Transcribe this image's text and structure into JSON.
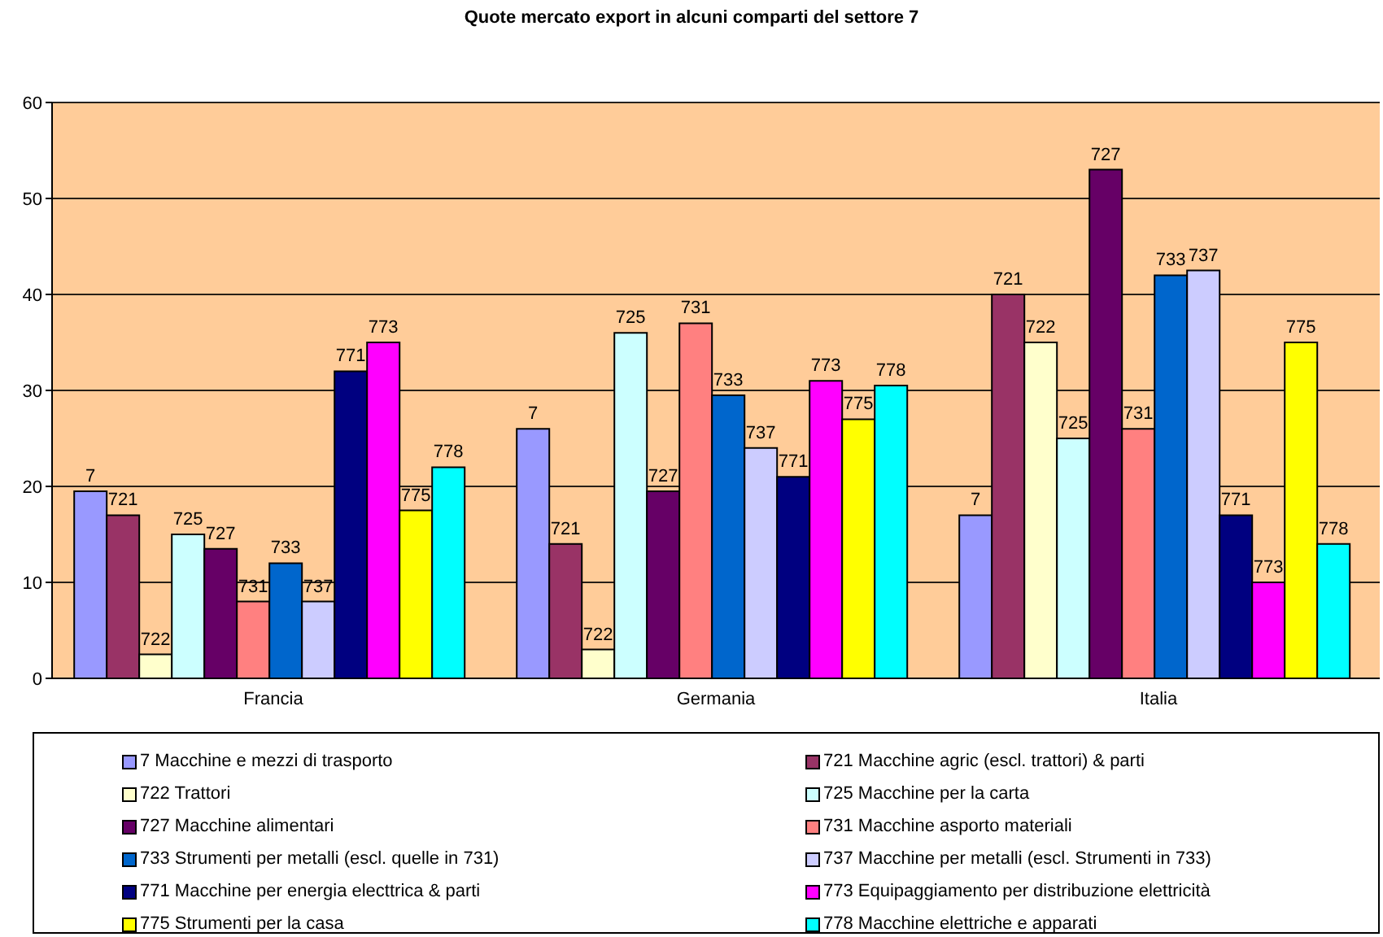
{
  "chart_data": {
    "type": "bar",
    "title": "Quote mercato export in alcuni comparti del settore 7",
    "categories": [
      "Francia",
      "Germania",
      "Italia"
    ],
    "series": [
      {
        "name": "7 Macchine e mezzi di trasporto",
        "color": "#9999ff",
        "values": [
          19.5,
          26,
          17
        ]
      },
      {
        "name": "721 Macchine agric (escl. trattori) & parti",
        "color": "#993366",
        "values": [
          17,
          14,
          40
        ]
      },
      {
        "name": "722 Trattori",
        "color": "#ffffcc",
        "values": [
          2.5,
          3,
          35
        ]
      },
      {
        "name": "725 Macchine per la carta",
        "color": "#ccffff",
        "values": [
          15,
          36,
          25
        ]
      },
      {
        "name": "727 Macchine alimentari",
        "color": "#660066",
        "values": [
          13.5,
          19.5,
          53
        ]
      },
      {
        "name": "731 Macchine asporto materiali",
        "color": "#ff8080",
        "values": [
          8,
          37,
          26
        ]
      },
      {
        "name": "733 Strumenti per metalli (escl. quelle in 731)",
        "color": "#0066cc",
        "values": [
          12,
          29.5,
          42
        ]
      },
      {
        "name": "737 Macchine per metalli (escl. Strumenti in 733)",
        "color": "#ccccff",
        "values": [
          8,
          24,
          42.5
        ]
      },
      {
        "name": "771 Macchine per energia electtrica & parti",
        "color": "#000080",
        "values": [
          32,
          21,
          17
        ]
      },
      {
        "name": "773 Equipaggiamento per distribuzione elettricità",
        "color": "#ff00ff",
        "values": [
          35,
          31,
          10
        ]
      },
      {
        "name": "775 Strumenti per la casa",
        "color": "#ffff00",
        "values": [
          17.5,
          27,
          35
        ]
      },
      {
        "name": "778 Macchine elettriche e apparati",
        "color": "#00ffff",
        "values": [
          22,
          30.5,
          14
        ]
      }
    ],
    "annotations": [
      "7",
      "7",
      "7",
      "721",
      "721",
      "721",
      "722",
      "722",
      "722",
      "725",
      "725",
      "725",
      "727",
      "727",
      "727",
      "731",
      "731",
      "731",
      "733",
      "733",
      "733",
      "737",
      "737",
      "737",
      "771",
      "771",
      "771",
      "773",
      "773",
      "773",
      "775",
      "775",
      "775",
      "778",
      "778",
      "778"
    ],
    "ylim": [
      0,
      60
    ],
    "yticks": [
      0,
      10,
      20,
      30,
      40,
      50,
      60
    ],
    "grid": "y",
    "legend": "bottom"
  }
}
